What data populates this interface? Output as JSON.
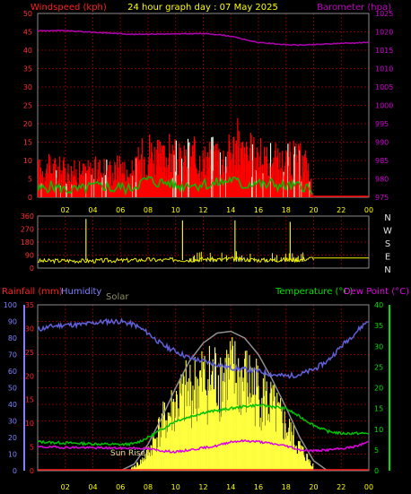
{
  "header": {
    "title": "24 hour graph day : 07 May 2025",
    "left_label": "Windspeed (kph)",
    "right_label": "Barometer (hpa)"
  },
  "direction_panel": {
    "left_ticks": [
      "360",
      "270",
      "180",
      "90",
      "0"
    ],
    "compass": [
      "N",
      "W",
      "S",
      "E",
      "N"
    ]
  },
  "bottom_header": {
    "rain_label": "Rainfall (mm)",
    "humidity_label": "Humidity",
    "solar_label": "Solar",
    "temp_label": "Temperature (°C)",
    "dew_label": "Dew Point (°C)",
    "sunrise_label": "Sun Rise"
  },
  "colors": {
    "wind": "#ff0000",
    "wind_avg": "#00c000",
    "gust_light": "#e8ffe8",
    "barometer": "#b000b0",
    "direction": "#f0f000",
    "humidity": "#6060d8",
    "solar": "#ffff40",
    "solar_curve": "#909090",
    "temperature": "#00c000",
    "dewpoint": "#e000e0",
    "rain_axis": "#ff2020",
    "humidity_axis": "#8080ff",
    "temp_axis": "#00e000",
    "grid": "#7a0000",
    "tick_text": "#ffff00"
  },
  "chart_data": [
    {
      "type": "line",
      "panel": "wind_barometer",
      "x_ticks": [
        "02",
        "04",
        "06",
        "08",
        "10",
        "12",
        "14",
        "16",
        "18",
        "20",
        "22",
        "00"
      ],
      "xlim": [
        0,
        24
      ],
      "y_left_ticks": [
        "0",
        "5",
        "10",
        "15",
        "20",
        "25",
        "30",
        "35",
        "40",
        "45",
        "50"
      ],
      "ylim_left": [
        0,
        50
      ],
      "y_right_ticks": [
        "975",
        "980",
        "985",
        "990",
        "995",
        "1000",
        "1005",
        "1010",
        "1015",
        "1020",
        "1025"
      ],
      "ylim_right": [
        975,
        1025
      ],
      "series": [
        {
          "axis": "right",
          "x": [
            0,
            2,
            4,
            6,
            7,
            8,
            9,
            10,
            11,
            12,
            13,
            14,
            15,
            16,
            17,
            18,
            19,
            20,
            21,
            22,
            23,
            24
          ],
          "y": [
            1020.3,
            1020.3,
            1019.9,
            1019.5,
            1019.3,
            1019.4,
            1019.4,
            1019.4,
            1019.5,
            1019.5,
            1019.3,
            1018.8,
            1017.9,
            1017.1,
            1016.8,
            1016.5,
            1016.4,
            1016.5,
            1016.7,
            1016.9,
            1017.0,
            1017.1
          ]
        }
      ],
      "wind_x": [
        0,
        1,
        2,
        3,
        4,
        5,
        5.5,
        6,
        6.5,
        7,
        7.5,
        8,
        8.5,
        9,
        9.5,
        10,
        10.5,
        11,
        11.5,
        12,
        12.5,
        13,
        13.5,
        14,
        14.5,
        15,
        15.5,
        16,
        16.5,
        17,
        17.5,
        18,
        18.5,
        19,
        19.5,
        20,
        21,
        22,
        23,
        24
      ],
      "wind_gust": [
        11,
        12,
        11,
        10,
        11,
        12,
        10,
        14,
        9,
        11,
        16,
        20,
        17,
        15,
        18,
        16,
        14,
        18,
        16,
        15,
        17,
        18,
        16,
        19,
        22,
        16,
        18,
        17,
        15,
        16,
        14,
        15,
        16,
        15,
        14,
        0,
        0,
        0,
        0,
        0
      ],
      "wind_avg": [
        2,
        3,
        2,
        2,
        3,
        3,
        2,
        3,
        2,
        3,
        4,
        5,
        4,
        4,
        4,
        3,
        3,
        4,
        3,
        4,
        3,
        4,
        4,
        5,
        4,
        3,
        4,
        4,
        3,
        4,
        3,
        3,
        3,
        3,
        3,
        0,
        0,
        0,
        0,
        0
      ]
    },
    {
      "type": "line",
      "panel": "wind_direction",
      "ylim": [
        0,
        360
      ],
      "x": [
        0,
        2,
        3,
        4,
        5,
        6,
        7,
        8,
        9,
        10,
        11,
        12,
        13,
        14,
        15,
        16,
        17,
        18,
        19,
        20,
        21,
        22,
        23,
        24
      ],
      "y": [
        48,
        52,
        50,
        49,
        53,
        52,
        55,
        58,
        54,
        60,
        56,
        62,
        58,
        64,
        60,
        56,
        54,
        60,
        58,
        70,
        70,
        70,
        70,
        70
      ],
      "spikes_x": [
        3.5,
        10.5,
        14.3,
        18.3
      ],
      "spikes_y": [
        340,
        330,
        330,
        320
      ]
    },
    {
      "type": "line",
      "panel": "rain_humidity_temp_solar",
      "x_ticks": [
        "02",
        "04",
        "06",
        "08",
        "10",
        "12",
        "14",
        "16",
        "18",
        "20",
        "22",
        "00"
      ],
      "xlim": [
        0,
        24
      ],
      "y_humidity_ticks": [
        "0",
        "10",
        "20",
        "30",
        "40",
        "50",
        "60",
        "70",
        "80",
        "90",
        "100"
      ],
      "ylim_humidity": [
        0,
        100
      ],
      "y_rain_ticks": [
        "0",
        "5",
        "10",
        "15",
        "20",
        "25",
        "30",
        "35"
      ],
      "ylim_rain": [
        0,
        35
      ],
      "y_temp_ticks": [
        "0",
        "5",
        "10",
        "15",
        "20",
        "25",
        "30",
        "35",
        "40"
      ],
      "ylim_temp": [
        0,
        40
      ],
      "series": [
        {
          "name": "Humidity",
          "axis": "humidity",
          "x": [
            0,
            1,
            2,
            3,
            4,
            5,
            6,
            7,
            8,
            9,
            10,
            11,
            12,
            13,
            14,
            15,
            16,
            17,
            18,
            19,
            20,
            21,
            22,
            23,
            24
          ],
          "y": [
            85,
            87,
            88,
            88,
            89,
            90,
            90,
            88,
            83,
            76,
            72,
            68,
            66,
            64,
            62,
            61,
            60,
            58,
            57,
            58,
            61,
            66,
            75,
            83,
            91
          ]
        },
        {
          "name": "Temperature",
          "axis": "temp",
          "x": [
            0,
            1,
            2,
            3,
            4,
            5,
            6,
            7,
            8,
            9,
            10,
            11,
            12,
            13,
            14,
            15,
            16,
            17,
            18,
            19,
            20,
            21,
            22,
            23,
            24
          ],
          "y": [
            7,
            6.8,
            6.7,
            6.6,
            6.5,
            6.4,
            6.3,
            6.5,
            8,
            10,
            12,
            13,
            14,
            14.5,
            15,
            15.5,
            15.8,
            15.5,
            15,
            13,
            11,
            9.5,
            9,
            9,
            9
          ]
        },
        {
          "name": "Dew Point",
          "axis": "temp",
          "x": [
            0,
            1,
            2,
            3,
            4,
            5,
            6,
            7,
            8,
            9,
            10,
            11,
            12,
            13,
            14,
            15,
            16,
            17,
            18,
            19,
            20,
            21,
            22,
            23,
            24
          ],
          "y": [
            5.7,
            5.7,
            5.6,
            5.6,
            5.5,
            5.5,
            5.4,
            5.5,
            5.3,
            4.8,
            4.5,
            5.0,
            5.5,
            6.0,
            7.0,
            7.2,
            7.0,
            6.5,
            6.0,
            5.0,
            4.8,
            5.0,
            5.3,
            5.8,
            7.0
          ]
        },
        {
          "name": "Rainfall",
          "axis": "rain",
          "x": [
            0,
            24
          ],
          "y": [
            0,
            0
          ]
        }
      ],
      "solar_envelope_x": [
        6.8,
        7.5,
        8,
        9,
        10,
        11,
        12,
        13,
        14,
        15,
        16,
        17,
        18,
        19,
        20
      ],
      "solar_envelope_y": [
        2,
        8,
        16,
        40,
        58,
        70,
        78,
        82,
        84,
        78,
        70,
        55,
        38,
        20,
        4
      ],
      "solar_clear_sky_x": [
        6,
        7,
        8,
        9,
        10,
        11,
        12,
        13,
        14,
        15,
        16,
        17,
        18,
        19,
        20,
        21
      ],
      "solar_clear_sky_y": [
        0,
        4,
        16,
        32,
        50,
        66,
        77,
        83,
        84,
        80,
        70,
        55,
        38,
        20,
        6,
        0
      ]
    }
  ]
}
